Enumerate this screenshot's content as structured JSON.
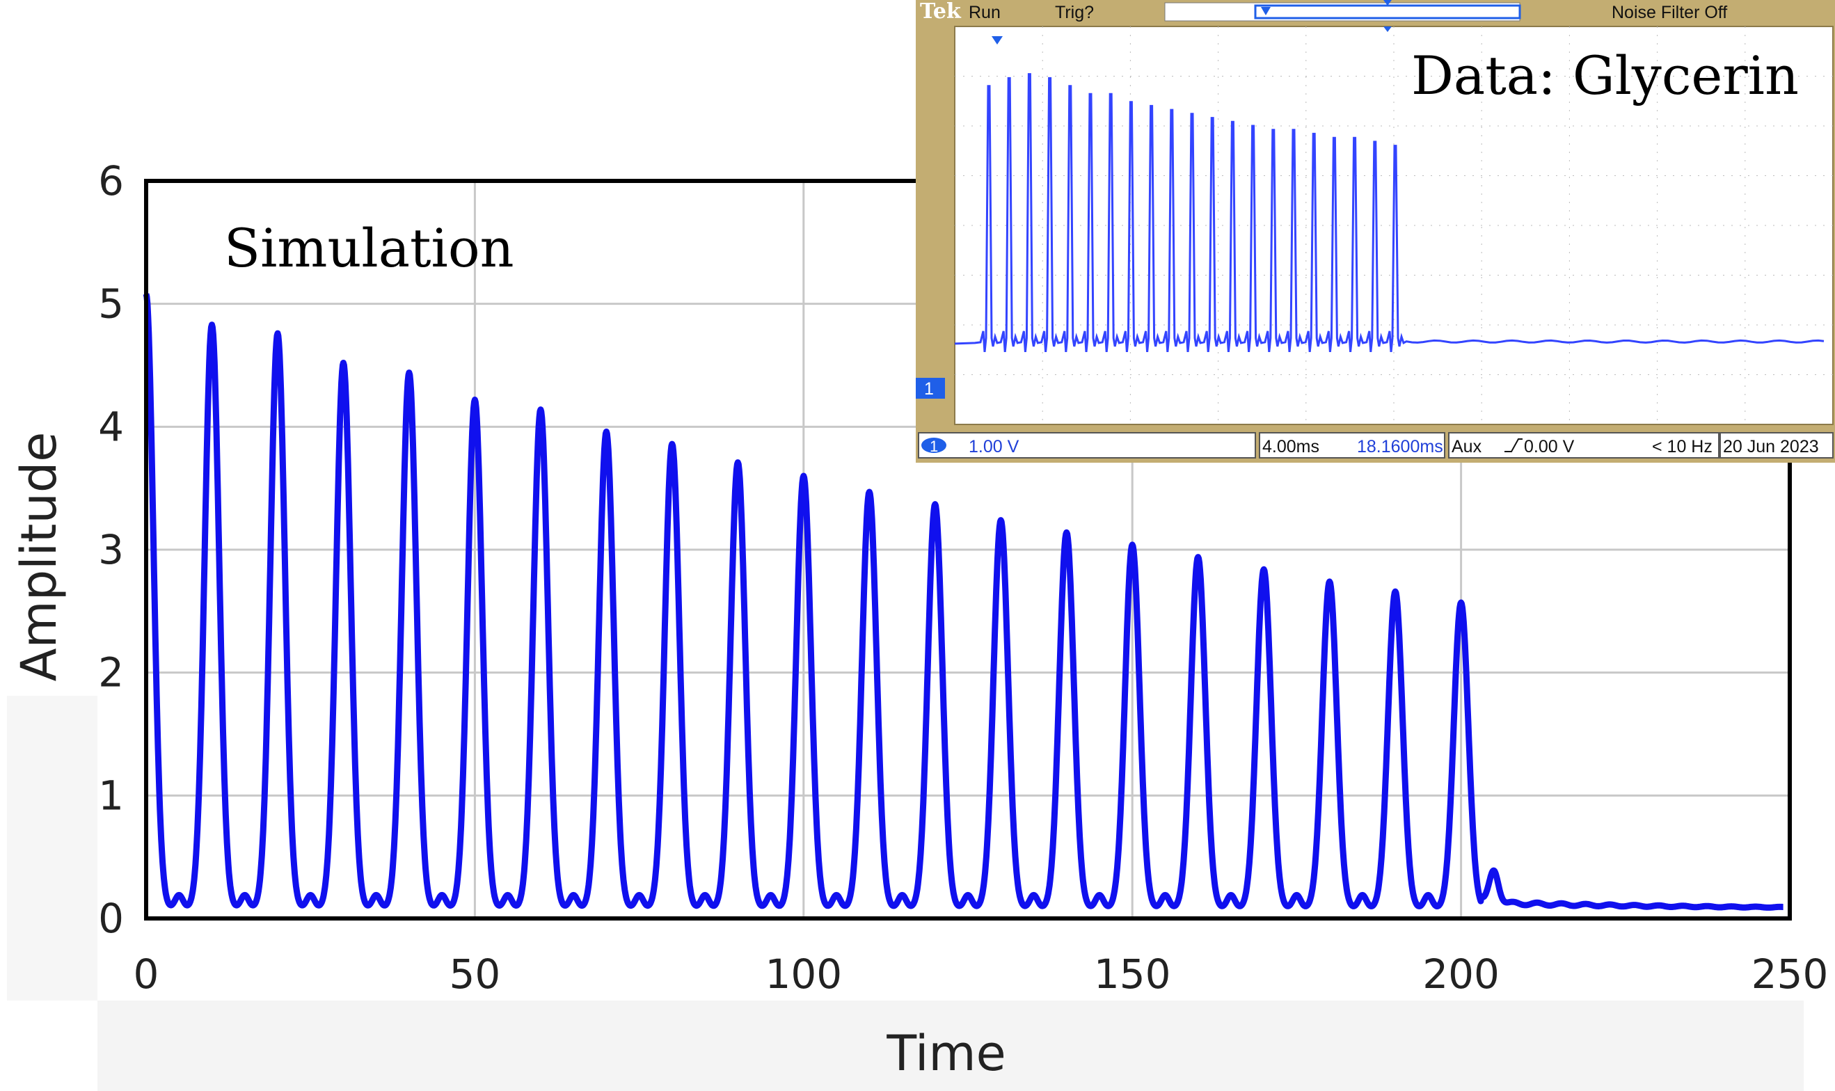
{
  "chart_data": [
    {
      "type": "line",
      "title": "Simulation",
      "xlabel": "Time",
      "ylabel": "Amplitude",
      "xlim": [
        0,
        250
      ],
      "ylim": [
        0,
        6
      ],
      "xticks": [
        "0",
        "50",
        "100",
        "150",
        "200",
        "250"
      ],
      "yticks": [
        "0",
        "1",
        "2",
        "3",
        "4",
        "5",
        "6"
      ],
      "grid": true,
      "color": "#1010ee",
      "peak_times": [
        0,
        10,
        20,
        30,
        40,
        50,
        60,
        70,
        80,
        90,
        100,
        110,
        120,
        130,
        140,
        150,
        160,
        170,
        180,
        190,
        200
      ],
      "peak_amplitudes": [
        5.0,
        4.75,
        4.68,
        4.44,
        4.36,
        4.14,
        4.06,
        3.88,
        3.78,
        3.63,
        3.52,
        3.39,
        3.29,
        3.16,
        3.06,
        2.96,
        2.86,
        2.76,
        2.66,
        2.58,
        2.49
      ],
      "baseline": 0.08
    },
    {
      "type": "line",
      "title": "Data: Glycerin",
      "color": "#3344ff",
      "pulse_count": 21,
      "pulse_relative_heights": [
        0.85,
        0.87,
        0.88,
        0.87,
        0.85,
        0.83,
        0.83,
        0.81,
        0.8,
        0.79,
        0.78,
        0.77,
        0.76,
        0.75,
        0.74,
        0.74,
        0.73,
        0.72,
        0.72,
        0.71,
        0.7
      ],
      "baseline_relative": 0.21
    }
  ],
  "scope": {
    "brand": "Tek",
    "run_label": "Run",
    "trig_label": "Trig?",
    "noise_filter": "Noise Filter Off",
    "channel_marker": "1",
    "channel_scale": "1.00 V",
    "timebase": "4.00ms",
    "trigger_position": "18.1600ms",
    "trigger_source": "Aux",
    "trigger_level": "0.00 V",
    "frequency": "< 10 Hz",
    "date": "20 Jun  2023",
    "colors": {
      "bezel": "#c3ad72",
      "trace": "#3344ff",
      "marker": "#1f5fe8"
    }
  }
}
